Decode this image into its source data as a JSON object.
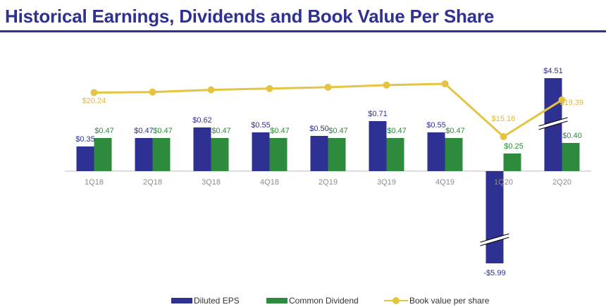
{
  "page": {
    "title": "Historical Earnings, Dividends and Book Value Per Share",
    "title_color": "#2e3192"
  },
  "chart_data": {
    "type": "bar",
    "categories": [
      "1Q18",
      "2Q18",
      "3Q18",
      "4Q18",
      "2Q19",
      "3Q19",
      "4Q19",
      "1Q20",
      "2Q20"
    ],
    "series": [
      {
        "name": "Diluted EPS",
        "kind": "bar",
        "color": "#2e3192",
        "values": [
          0.35,
          0.47,
          0.62,
          0.55,
          0.5,
          0.71,
          0.55,
          -5.99,
          4.51
        ],
        "labels": [
          "$0.35",
          "$0.47",
          "$0.62",
          "$0.55",
          "$0.50",
          "$0.71",
          "$0.55",
          "-$5.99",
          "$4.51"
        ],
        "axis_break": [
          false,
          false,
          false,
          false,
          false,
          false,
          false,
          true,
          true
        ]
      },
      {
        "name": "Common Dividend",
        "kind": "bar",
        "color": "#2e8b3e",
        "values": [
          0.47,
          0.47,
          0.47,
          0.47,
          0.47,
          0.47,
          0.47,
          0.25,
          0.4
        ],
        "labels": [
          "$0.47",
          "$0.47",
          "$0.47",
          "$0.47",
          "$0.47",
          "$0.47",
          "$0.47",
          "$0.25",
          "$0.40"
        ]
      },
      {
        "name": "Book value per share",
        "kind": "line",
        "color": "#e5c443",
        "values": [
          20.24,
          20.3,
          20.55,
          20.7,
          20.85,
          21.1,
          21.25,
          15.16,
          19.39
        ],
        "labels": [
          "$20.24",
          "",
          "",
          "",
          "",
          "",
          "",
          "$15.16",
          "$19.39"
        ]
      }
    ],
    "legend_position": "bottom",
    "grid": false
  }
}
